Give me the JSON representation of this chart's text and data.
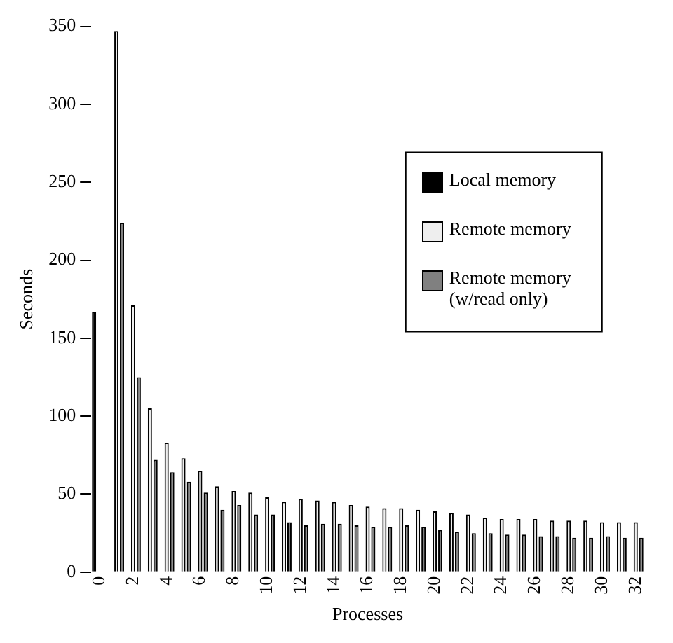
{
  "chart_data": {
    "type": "bar",
    "xlabel": "Processes",
    "ylabel": "Seconds",
    "categories": [
      "0",
      null,
      "2",
      null,
      "4",
      null,
      "6",
      null,
      "8",
      null,
      "10",
      null,
      "12",
      null,
      "14",
      null,
      "16",
      null,
      "18",
      null,
      "20",
      null,
      "22",
      null,
      "24",
      null,
      "26",
      null,
      "28",
      null,
      "30",
      null,
      "32"
    ],
    "series": [
      {
        "name": "Local memory",
        "color": "#000000",
        "values": [
          167,
          null,
          null,
          null,
          null,
          null,
          null,
          null,
          null,
          null,
          null,
          null,
          null,
          null,
          null,
          null,
          null,
          null,
          null,
          null,
          null,
          null,
          null,
          null,
          null,
          null,
          null,
          null,
          null,
          null,
          null,
          null,
          null
        ]
      },
      {
        "name": "Remote memory",
        "color": "#eeeeee",
        "values": [
          null,
          347,
          171,
          105,
          83,
          73,
          65,
          55,
          52,
          51,
          48,
          45,
          47,
          46,
          45,
          43,
          42,
          41,
          41,
          40,
          39,
          38,
          37,
          35,
          34,
          34,
          34,
          33,
          33,
          33,
          32,
          32,
          32
        ]
      },
      {
        "name": "Remote memory (w/read only)",
        "color": "#808080",
        "values": [
          null,
          224,
          125,
          72,
          64,
          58,
          51,
          40,
          43,
          37,
          37,
          32,
          30,
          31,
          31,
          30,
          29,
          29,
          30,
          29,
          27,
          26,
          25,
          25,
          24,
          24,
          23,
          23,
          22,
          22,
          23,
          22,
          22
        ]
      }
    ],
    "ylim": [
      0,
      350
    ],
    "yticks": [
      0,
      50,
      100,
      150,
      200,
      250,
      300,
      350
    ],
    "grid": false,
    "legend": "right"
  }
}
